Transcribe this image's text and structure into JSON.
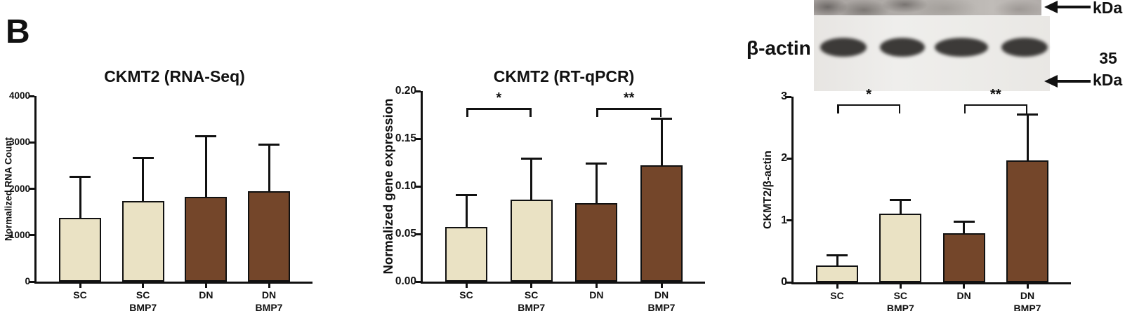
{
  "panel_label": "B",
  "blot_panel": {
    "antibody_label": "β-actin",
    "marker_top_label": "kDa",
    "marker_value": "35",
    "marker_bottom_label": "kDa",
    "lanes": 4
  },
  "chart_data": [
    {
      "type": "bar",
      "title": "CKMT2 (RNA-Seq)",
      "ylabel": "Normalized RNA Count",
      "categories": [
        "SC",
        "SC\nBMP7",
        "DN",
        "DN\nBMP7"
      ],
      "values": [
        1375,
        1735,
        1825,
        1945
      ],
      "errors_upper": [
        905,
        945,
        1325,
        1025
      ],
      "ylim": [
        0,
        4000
      ],
      "yticks": [
        0,
        1000,
        2000,
        3000,
        4000
      ],
      "ytick_labels": [
        "0",
        "1000",
        "2000",
        "3000",
        "4000"
      ],
      "bar_colors": [
        "#eae2c4",
        "#eae2c4",
        "#74462a",
        "#74462a"
      ],
      "grid": false,
      "sig_brackets": []
    },
    {
      "type": "bar",
      "title": "CKMT2 (RT-qPCR)",
      "ylabel": "Normalized gene expression",
      "categories": [
        "SC",
        "SC\nBMP7",
        "DN",
        "DN\nBMP7"
      ],
      "values": [
        0.057,
        0.086,
        0.082,
        0.122
      ],
      "errors_upper": [
        0.035,
        0.044,
        0.043,
        0.05
      ],
      "ylim": [
        0,
        0.2
      ],
      "yticks": [
        0,
        0.05,
        0.1,
        0.15,
        0.2
      ],
      "ytick_labels": [
        "0.00",
        "0.05",
        "0.10",
        "0.15",
        "0.20"
      ],
      "bar_colors": [
        "#eae2c4",
        "#eae2c4",
        "#74462a",
        "#74462a"
      ],
      "grid": false,
      "sig_brackets": [
        {
          "groups": [
            0,
            1
          ],
          "label": "*",
          "y": 0.182
        },
        {
          "groups": [
            2,
            3
          ],
          "label": "**",
          "y": 0.182
        }
      ]
    },
    {
      "type": "bar",
      "title": "",
      "ylabel": "CKMT2/β-actin",
      "categories": [
        "SC",
        "SC\nBMP7",
        "DN",
        "DN\nBMP7"
      ],
      "values": [
        0.27,
        1.11,
        0.79,
        1.97
      ],
      "errors_upper": [
        0.18,
        0.24,
        0.21,
        0.76
      ],
      "ylim": [
        0,
        3
      ],
      "yticks": [
        0,
        1,
        2,
        3
      ],
      "ytick_labels": [
        "0",
        "1",
        "2",
        "3"
      ],
      "bar_colors": [
        "#eae2c4",
        "#eae2c4",
        "#74462a",
        "#74462a"
      ],
      "grid": false,
      "sig_brackets": [
        {
          "groups": [
            0,
            1
          ],
          "label": "*",
          "y": 2.88
        },
        {
          "groups": [
            2,
            3
          ],
          "label": "**",
          "y": 2.88
        }
      ]
    }
  ]
}
